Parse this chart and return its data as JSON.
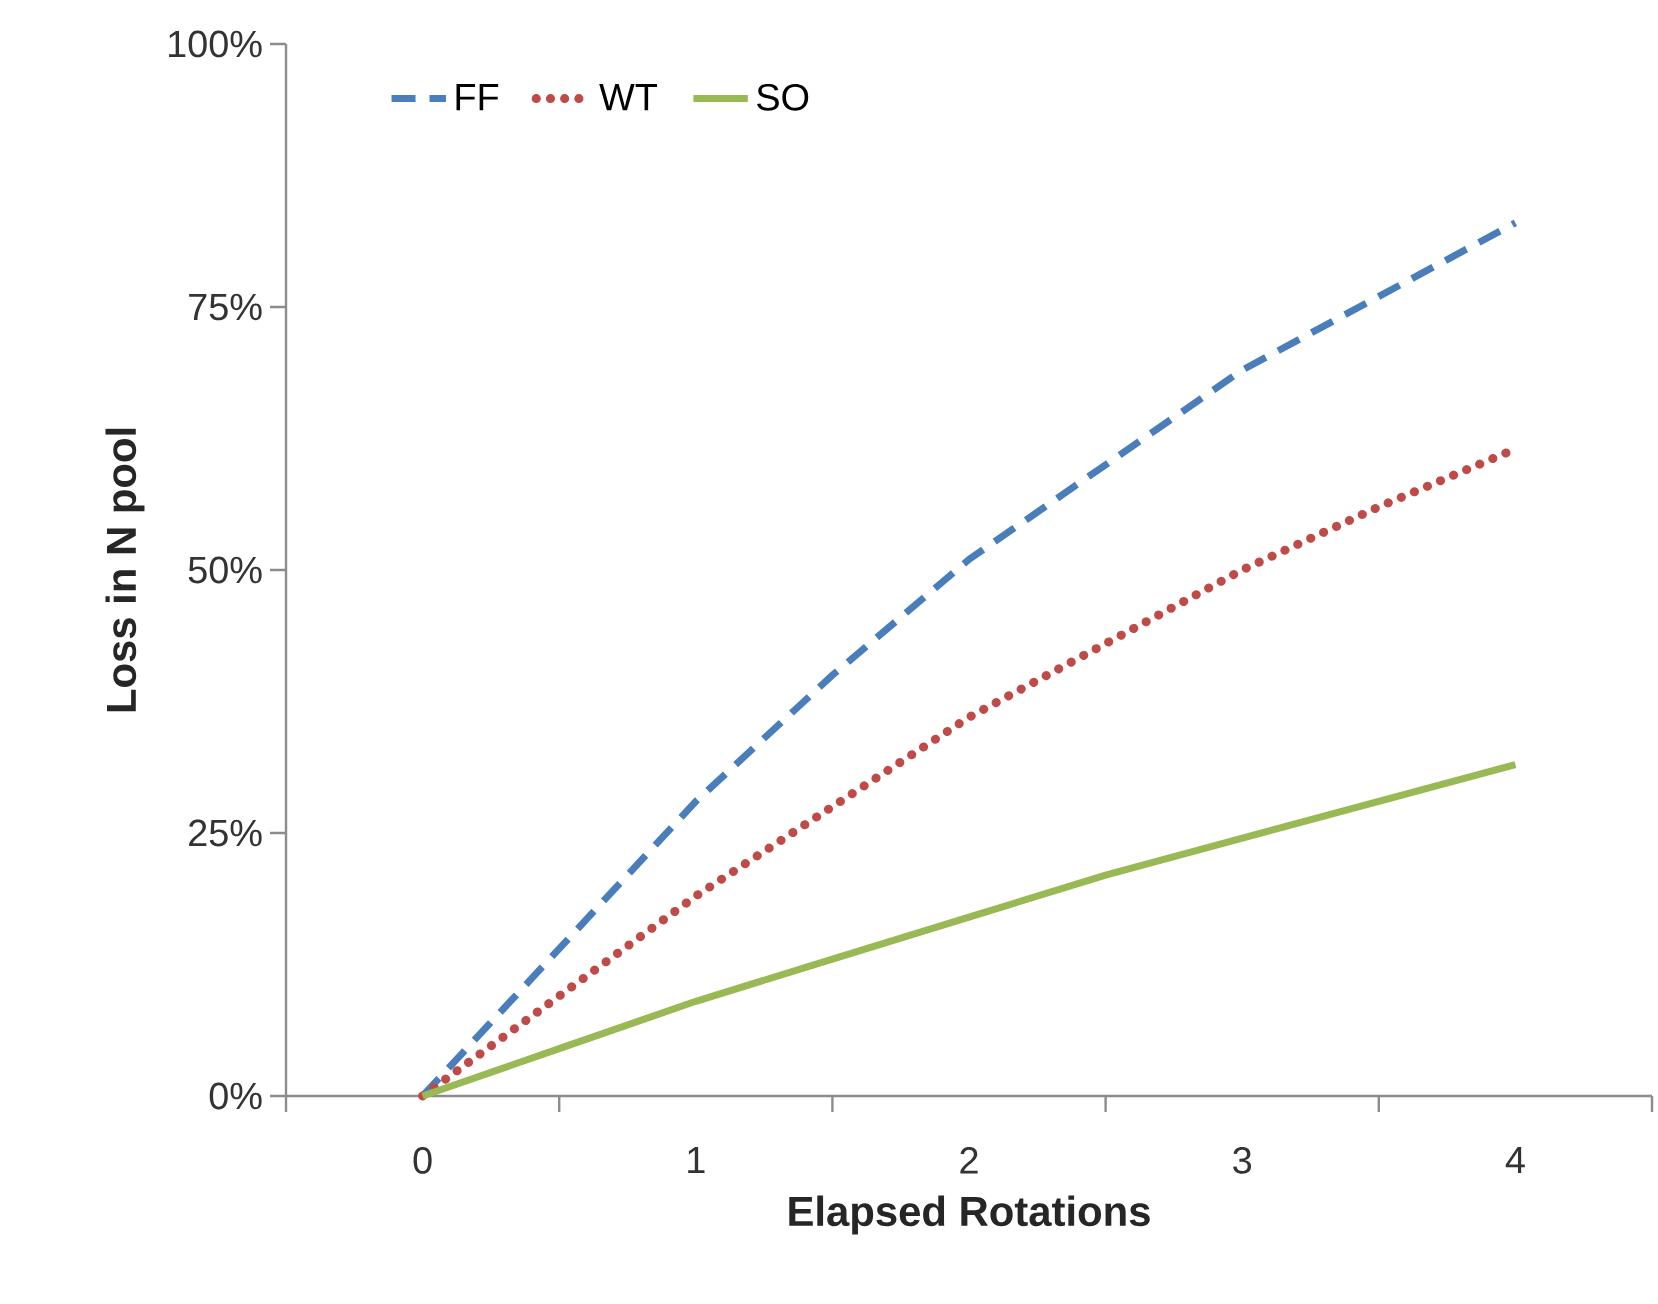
{
  "chart_data": {
    "type": "line",
    "xlabel": "Elapsed Rotations",
    "ylabel": "Loss in N pool",
    "xlim": [
      -0.5,
      4.5
    ],
    "xticks": [
      {
        "value": -0.5,
        "label": null
      },
      {
        "value": 0,
        "label": "0"
      },
      {
        "value": 0.5,
        "label": null
      },
      {
        "value": 1,
        "label": "1"
      },
      {
        "value": 1.5,
        "label": null
      },
      {
        "value": 2,
        "label": "2"
      },
      {
        "value": 2.5,
        "label": null
      },
      {
        "value": 3,
        "label": "3"
      },
      {
        "value": 3.5,
        "label": null
      },
      {
        "value": 4,
        "label": "4"
      },
      {
        "value": 4.5,
        "label": null
      }
    ],
    "ylim": [
      0,
      100
    ],
    "yticks": [
      {
        "value": 0,
        "label": "0%"
      },
      {
        "value": 25,
        "label": "25%"
      },
      {
        "value": 50,
        "label": "50%"
      },
      {
        "value": 75,
        "label": "75%"
      },
      {
        "value": 100,
        "label": "100%"
      }
    ],
    "x": [
      0,
      0.5,
      1,
      1.5,
      2,
      2.5,
      3,
      3.5,
      4
    ],
    "legend": "top left",
    "marker": "none",
    "grid": false,
    "series": [
      {
        "name": "FF",
        "color": "#4a7ebb",
        "line_style": "dashed",
        "values": [
          0,
          14,
          28,
          40,
          51,
          60,
          69,
          76,
          83
        ]
      },
      {
        "name": "WT",
        "color": "#be4b48",
        "line_style": "dotted",
        "values": [
          0,
          9.5,
          19,
          27.5,
          36,
          43,
          50,
          56,
          61.5
        ]
      },
      {
        "name": "SO",
        "color": "#98b954",
        "line_style": "solid",
        "values": [
          0,
          4.5,
          9,
          13,
          17,
          21,
          24.5,
          28,
          31.5
        ]
      }
    ]
  }
}
